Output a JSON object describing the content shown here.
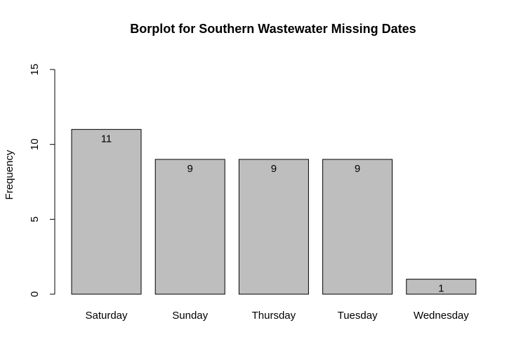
{
  "chart_data": {
    "type": "bar",
    "title": "Borplot for Southern Wastewater Missing Dates",
    "xlabel": "",
    "ylabel": "Frequency",
    "categories": [
      "Saturday",
      "Sunday",
      "Thursday",
      "Tuesday",
      "Wednesday"
    ],
    "values": [
      11,
      9,
      9,
      9,
      1
    ],
    "data_labels": [
      "11",
      "9",
      "9",
      "9",
      "1"
    ],
    "ylim": [
      0,
      15
    ],
    "yticks": [
      0,
      5,
      10,
      15
    ],
    "ytick_labels": [
      "0",
      "5",
      "10",
      "15"
    ],
    "grid": false,
    "bar_color": "#bebebe",
    "border_color": "#000000"
  }
}
